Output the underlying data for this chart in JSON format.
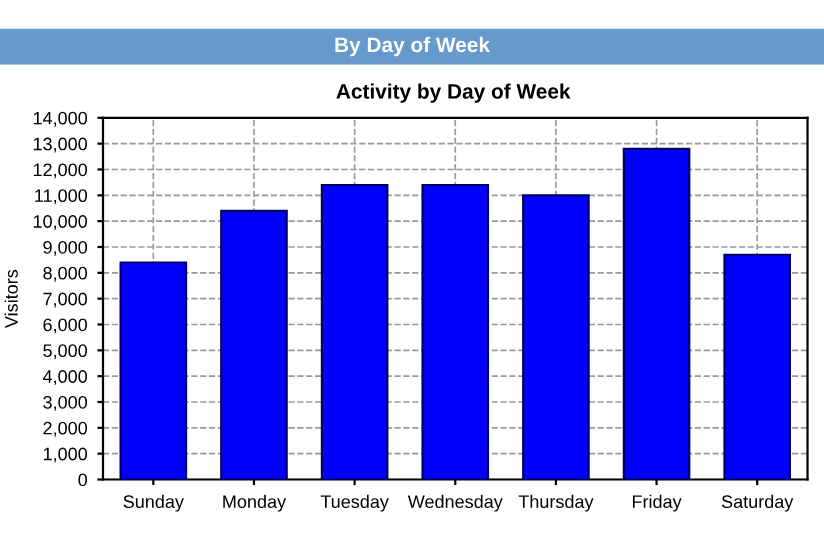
{
  "chart_data": {
    "type": "bar",
    "title": "By Day of Week",
    "subtitle": "Activity by Day of Week",
    "ylabel": "Visitors",
    "categories": [
      "Sunday",
      "Monday",
      "Tuesday",
      "Wednesday",
      "Thursday",
      "Friday",
      "Saturday"
    ],
    "series": [
      {
        "color": "#0000ff",
        "values": [
          8400,
          10400,
          11400,
          11400,
          11000,
          12800,
          8700
        ]
      }
    ],
    "ylim": [
      0,
      14000
    ],
    "yticks": [
      {
        "value": 0,
        "label": "0"
      },
      {
        "value": 1000,
        "label": "1,000"
      },
      {
        "value": 2000,
        "label": "2,000"
      },
      {
        "value": 3000,
        "label": "3,000"
      },
      {
        "value": 4000,
        "label": "4,000"
      },
      {
        "value": 5000,
        "label": "5,000"
      },
      {
        "value": 6000,
        "label": "6,000"
      },
      {
        "value": 7000,
        "label": "7,000"
      },
      {
        "value": 8000,
        "label": "8,000"
      },
      {
        "value": 9000,
        "label": "9,000"
      },
      {
        "value": 10000,
        "label": "10,000"
      },
      {
        "value": 11000,
        "label": "11,000"
      },
      {
        "value": 12000,
        "label": "12,000"
      },
      {
        "value": 13000,
        "label": "13,000"
      },
      {
        "value": 14000,
        "label": "14,000"
      }
    ],
    "grid": true
  }
}
